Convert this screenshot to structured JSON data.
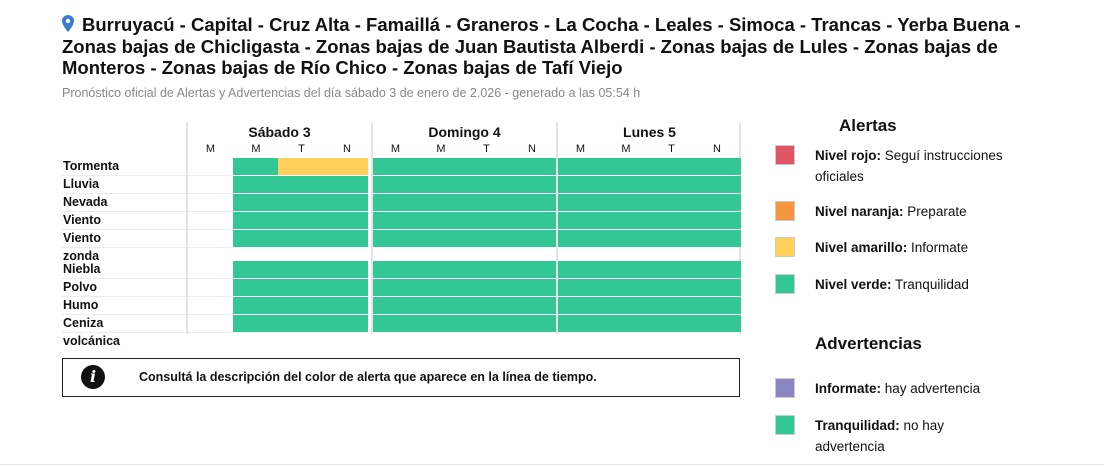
{
  "header": {
    "title": "Burruyacú - Capital - Cruz Alta - Famaillá - Graneros - La Cocha - Leales - Simoca - Trancas - Yerba Buena - Zonas bajas de Chicligasta - Zonas bajas de Juan Bautista Alberdi - Zonas bajas de Lules - Zonas bajas de Monteros - Zonas bajas de Río Chico - Zonas bajas de Tafí Viejo",
    "subtitle": "Pronóstico oficial de Alertas y Advertencias del día sábado 3 de enero de 2.026 - generado a las 05:54 h",
    "icon": "map-pin-icon"
  },
  "colors": {
    "rojo": "#e05565",
    "naranja": "#f5963f",
    "amarillo": "#ffd15a",
    "verde": "#34c796",
    "violeta": "#8b85c4",
    "empty": "#ffffff"
  },
  "timeline": {
    "days": [
      {
        "label": "Sábado 3",
        "slots": [
          "M",
          "M",
          "T",
          "N"
        ]
      },
      {
        "label": "Domingo 4",
        "slots": [
          "M",
          "M",
          "T",
          "N"
        ]
      },
      {
        "label": "Lunes 5",
        "slots": [
          "M",
          "M",
          "T",
          "N"
        ]
      }
    ],
    "alert_rows": [
      {
        "label": "Tormenta",
        "levels": [
          "empty",
          "verde",
          "amarillo",
          "amarillo",
          "verde",
          "verde",
          "verde",
          "verde",
          "verde",
          "verde",
          "verde",
          "verde"
        ]
      },
      {
        "label": "Lluvia",
        "levels": [
          "empty",
          "verde",
          "verde",
          "verde",
          "verde",
          "verde",
          "verde",
          "verde",
          "verde",
          "verde",
          "verde",
          "verde"
        ]
      },
      {
        "label": "Nevada",
        "levels": [
          "empty",
          "verde",
          "verde",
          "verde",
          "verde",
          "verde",
          "verde",
          "verde",
          "verde",
          "verde",
          "verde",
          "verde"
        ]
      },
      {
        "label": "Viento",
        "levels": [
          "empty",
          "verde",
          "verde",
          "verde",
          "verde",
          "verde",
          "verde",
          "verde",
          "verde",
          "verde",
          "verde",
          "verde"
        ]
      },
      {
        "label": "Viento zonda",
        "levels": [
          "empty",
          "verde",
          "verde",
          "verde",
          "verde",
          "verde",
          "verde",
          "verde",
          "verde",
          "verde",
          "verde",
          "verde"
        ]
      }
    ],
    "warning_rows": [
      {
        "label": "Niebla",
        "levels": [
          "empty",
          "verde",
          "verde",
          "verde",
          "verde",
          "verde",
          "verde",
          "verde",
          "verde",
          "verde",
          "verde",
          "verde"
        ]
      },
      {
        "label": "Polvo",
        "levels": [
          "empty",
          "verde",
          "verde",
          "verde",
          "verde",
          "verde",
          "verde",
          "verde",
          "verde",
          "verde",
          "verde",
          "verde"
        ]
      },
      {
        "label": "Humo",
        "levels": [
          "empty",
          "verde",
          "verde",
          "verde",
          "verde",
          "verde",
          "verde",
          "verde",
          "verde",
          "verde",
          "verde",
          "verde"
        ]
      },
      {
        "label": "Ceniza volcánica",
        "levels": [
          "empty",
          "verde",
          "verde",
          "verde",
          "verde",
          "verde",
          "verde",
          "verde",
          "verde",
          "verde",
          "verde",
          "verde"
        ]
      }
    ]
  },
  "info": {
    "icon": "info-icon",
    "icon_glyph": "i",
    "text": "Consultá la descripción del color de alerta que aparece en la línea de tiempo."
  },
  "legend": {
    "alerts_title": "Alertas",
    "alerts": [
      {
        "bold": "Nivel rojo:",
        "text": " Seguí instrucciones oficiales",
        "color": "rojo"
      },
      {
        "bold": "Nivel naranja:",
        "text": " Preparate",
        "color": "naranja"
      },
      {
        "bold": "Nivel amarillo:",
        "text": " Informate",
        "color": "amarillo"
      },
      {
        "bold": "Nivel verde:",
        "text": " Tranquilidad",
        "color": "verde"
      }
    ],
    "warnings_title": "Advertencias",
    "warnings": [
      {
        "bold": "Informate:",
        "text": " hay advertencia",
        "color": "violeta"
      },
      {
        "bold": "Tranquilidad:",
        "text": " no hay advertencia",
        "color": "verde"
      }
    ]
  }
}
